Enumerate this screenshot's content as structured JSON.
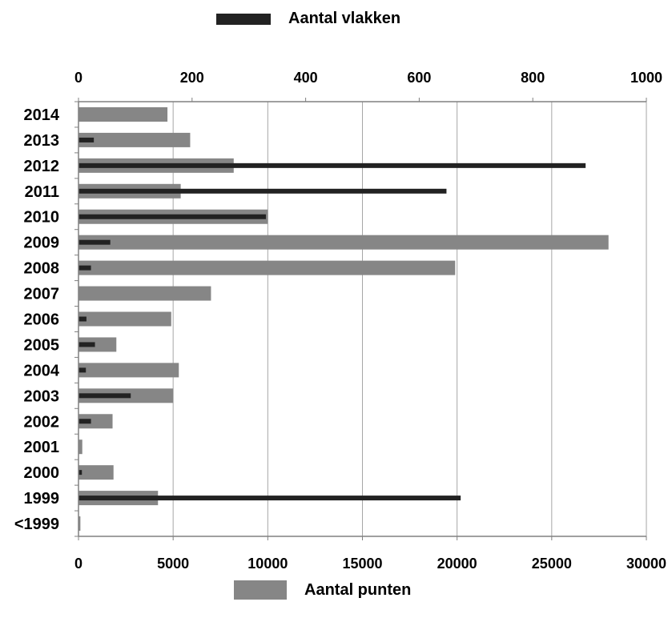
{
  "chart_data": {
    "type": "bar",
    "orientation": "horizontal",
    "categories": [
      "2014",
      "2013",
      "2012",
      "2011",
      "2010",
      "2009",
      "2008",
      "2007",
      "2006",
      "2005",
      "2004",
      "2003",
      "2002",
      "2001",
      "2000",
      "1999",
      "<1999"
    ],
    "series": [
      {
        "name": "Aantal punten",
        "axis": "bottom",
        "color": "#868686",
        "values": [
          4700,
          5900,
          8200,
          5400,
          10000,
          28000,
          19900,
          7000,
          4900,
          2000,
          5300,
          5000,
          1800,
          200,
          1850,
          4200,
          100
        ]
      },
      {
        "name": "Aantal vlakken",
        "axis": "top",
        "color": "#222222",
        "values": [
          0,
          27,
          893,
          648,
          330,
          56,
          22,
          0,
          14,
          29,
          13,
          92,
          22,
          0,
          6,
          673,
          0
        ]
      }
    ],
    "bottom_axis": {
      "min": 0,
      "max": 30000,
      "ticks": [
        "0",
        "5000",
        "10000",
        "15000",
        "20000",
        "25000",
        "30000"
      ]
    },
    "top_axis": {
      "min": 0,
      "max": 1000,
      "ticks": [
        "0",
        "200",
        "400",
        "600",
        "800",
        "1000"
      ]
    },
    "grid": "vertical",
    "legend": [
      {
        "label": "Aantal vlakken",
        "placement": "top",
        "color": "#222222"
      },
      {
        "label": "Aantal punten",
        "placement": "bottom",
        "color": "#868686"
      }
    ]
  }
}
